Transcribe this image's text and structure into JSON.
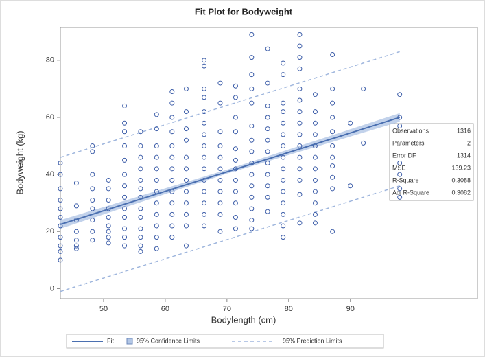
{
  "chart_data": {
    "type": "scatter",
    "title": "Fit Plot for Bodyweight",
    "x_label": "Bodylength (cm)",
    "y_label": "Bodyweight (kg)",
    "xlim": [
      43,
      110.6
    ],
    "ylim": [
      -3.5,
      91.5
    ],
    "xticks": [
      50,
      60,
      70,
      80,
      90
    ],
    "yticks": [
      0,
      20,
      40,
      60,
      80
    ],
    "point_color": "#3b5ca8",
    "points": [
      {
        "x": 43,
        "y": [
          44,
          40,
          35,
          31,
          28,
          25,
          22,
          18,
          15,
          13,
          10
        ]
      },
      {
        "x": 45.6,
        "y": [
          37,
          29,
          24,
          20,
          17,
          15,
          14
        ]
      },
      {
        "x": 48.2,
        "y": [
          50,
          48,
          40,
          35,
          31,
          28,
          24,
          20,
          17
        ]
      },
      {
        "x": 50.8,
        "y": [
          38,
          35,
          31,
          28,
          25,
          22,
          20,
          18,
          16
        ]
      },
      {
        "x": 53.4,
        "y": [
          64,
          58,
          55,
          50,
          45,
          40,
          36,
          32,
          28,
          25,
          21,
          18,
          15
        ]
      },
      {
        "x": 56,
        "y": [
          55,
          50,
          46,
          42,
          38,
          35,
          32,
          28,
          25,
          21,
          18,
          15,
          13
        ]
      },
      {
        "x": 58.6,
        "y": [
          61,
          56,
          50,
          46,
          42,
          38,
          34,
          30,
          26,
          22,
          18,
          14
        ]
      },
      {
        "x": 61.1,
        "y": [
          69,
          65,
          60,
          55,
          50,
          46,
          42,
          38,
          34,
          30,
          26,
          22,
          18
        ]
      },
      {
        "x": 63.4,
        "y": [
          70,
          62,
          56,
          52,
          46,
          42,
          38,
          34,
          30,
          26,
          22,
          15
        ]
      },
      {
        "x": 66.3,
        "y": [
          80,
          78,
          70,
          67,
          62,
          58,
          54,
          50,
          46,
          42,
          38,
          34,
          30,
          26,
          22
        ]
      },
      {
        "x": 68.9,
        "y": [
          72,
          65,
          55,
          50,
          46,
          42,
          38,
          34,
          30,
          26,
          20
        ]
      },
      {
        "x": 71.4,
        "y": [
          71,
          67,
          60,
          55,
          49,
          45,
          42,
          38,
          34,
          30,
          25,
          21
        ]
      },
      {
        "x": 74,
        "y": [
          89,
          81,
          75,
          70,
          65,
          57,
          52,
          48,
          44,
          40,
          36,
          32,
          28,
          24,
          21
        ]
      },
      {
        "x": 76.6,
        "y": [
          84,
          72,
          64,
          60,
          56,
          52,
          48,
          44,
          40,
          36,
          32,
          27
        ]
      },
      {
        "x": 79.1,
        "y": [
          79,
          75,
          65,
          62,
          58,
          54,
          50,
          46,
          42,
          38,
          34,
          30,
          26,
          22,
          18
        ]
      },
      {
        "x": 81.8,
        "y": [
          89,
          85,
          81,
          77,
          70,
          66,
          62,
          58,
          54,
          50,
          46,
          42,
          38,
          33,
          23
        ]
      },
      {
        "x": 84.3,
        "y": [
          68,
          62,
          58,
          54,
          50,
          46,
          42,
          38,
          34,
          30,
          26,
          23
        ]
      },
      {
        "x": 87.1,
        "y": [
          82,
          70,
          65,
          60,
          55,
          50,
          46,
          43,
          39,
          35,
          20
        ]
      },
      {
        "x": 90,
        "y": [
          58,
          36
        ]
      },
      {
        "x": 92.1,
        "y": [
          70,
          51
        ]
      },
      {
        "x": 98,
        "y": [
          68,
          60,
          57,
          44,
          40,
          35,
          32
        ]
      }
    ],
    "fit": {
      "name": "Fit",
      "color": "#4a6fb0",
      "x": [
        43,
        98
      ],
      "values": [
        22.5,
        60
      ]
    },
    "confidence_limits": {
      "name": "95% Confidence Limits",
      "color": "#b3c7e6",
      "x": [
        43,
        70,
        98
      ],
      "lower": [
        21,
        40.3,
        58.5
      ],
      "upper": [
        24,
        41.7,
        61.5
      ]
    },
    "prediction_limits": {
      "name": "95% Prediction Limits",
      "color": "#9fb6dd",
      "x": [
        43,
        98
      ],
      "lower": [
        -1,
        36
      ],
      "upper": [
        46,
        83
      ]
    },
    "stats": [
      [
        "Observations",
        1316
      ],
      [
        "Parameters",
        2
      ],
      [
        "Error DF",
        1314
      ],
      [
        "MSE",
        139.23
      ],
      [
        "R-Square",
        0.3088
      ],
      [
        "Adj R-Square",
        0.3082
      ]
    ]
  }
}
